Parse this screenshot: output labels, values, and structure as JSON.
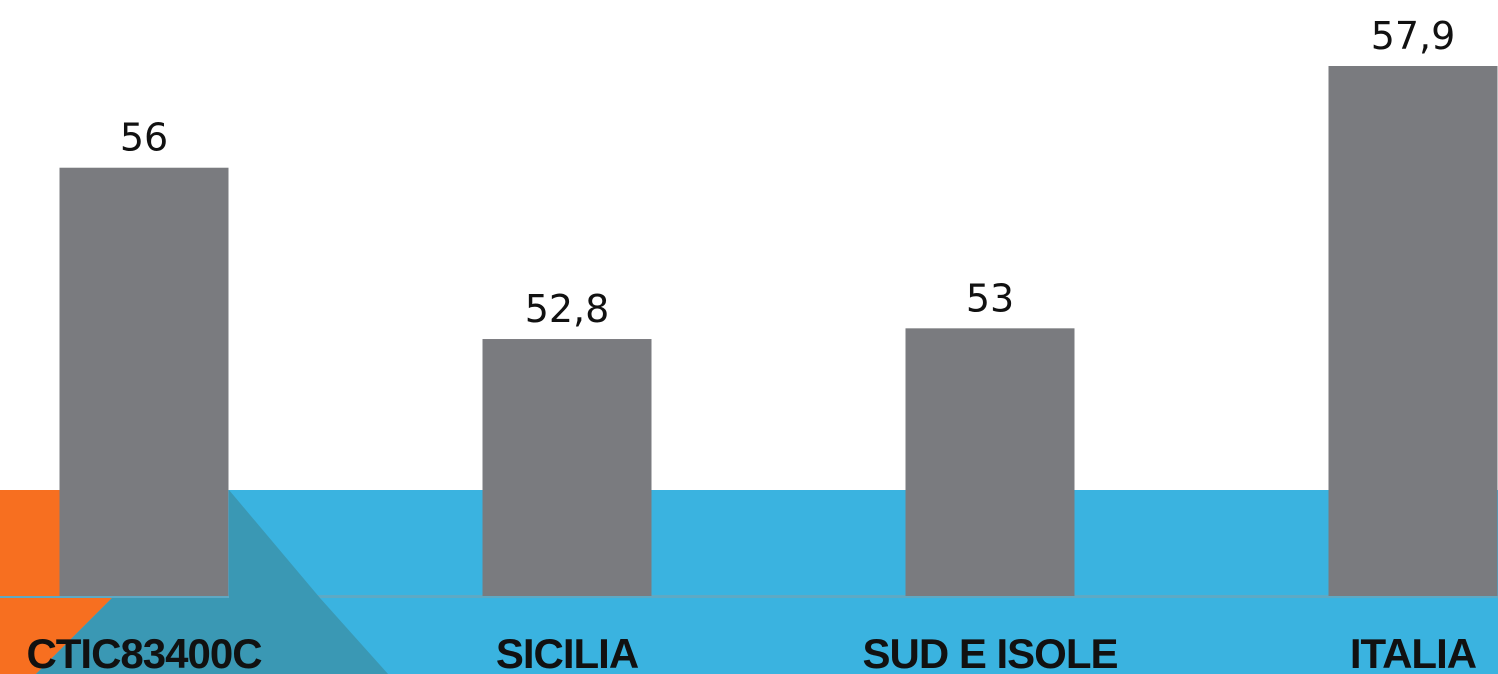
{
  "theme": {
    "bar_color": "#7a7b7f",
    "band_color": "#3ab3e0",
    "band_dark_color": "#3aa0bf",
    "footer_band_color": "#3ab3e0",
    "accent_orange": "#f76f20",
    "text_color": "#111111"
  },
  "chart_data": {
    "type": "bar",
    "categories": [
      "CTIC83400C",
      "SICILIA",
      "SUD E ISOLE",
      "ITALIA"
    ],
    "values": [
      56,
      52.8,
      53,
      57.9
    ],
    "value_labels": [
      "56",
      "52,8",
      "53",
      "57,9"
    ],
    "title": "",
    "xlabel": "",
    "ylabel": "",
    "ylim": [
      48,
      58.5
    ],
    "grid": false,
    "legend": "none"
  }
}
